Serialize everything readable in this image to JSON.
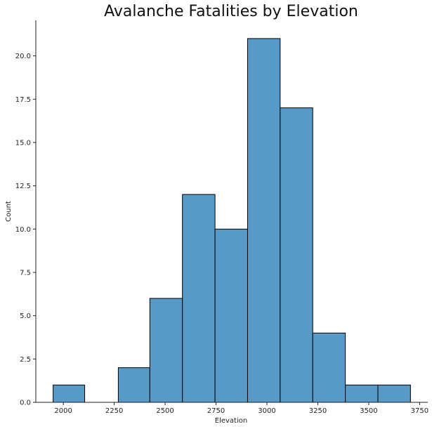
{
  "chart_data": {
    "type": "bar",
    "title": "Avalanche Fatalities by Elevation",
    "xlabel": "Elevation",
    "ylabel": "Count",
    "bins": [
      {
        "start": 1950,
        "end": 2105,
        "count": 1
      },
      {
        "start": 2105,
        "end": 2270,
        "count": 0
      },
      {
        "start": 2270,
        "end": 2425,
        "count": 2
      },
      {
        "start": 2425,
        "end": 2585,
        "count": 6
      },
      {
        "start": 2585,
        "end": 2745,
        "count": 12
      },
      {
        "start": 2745,
        "end": 2905,
        "count": 10
      },
      {
        "start": 2905,
        "end": 3065,
        "count": 21
      },
      {
        "start": 3065,
        "end": 3225,
        "count": 17
      },
      {
        "start": 3225,
        "end": 3385,
        "count": 4
      },
      {
        "start": 3385,
        "end": 3545,
        "count": 1
      },
      {
        "start": 3545,
        "end": 3705,
        "count": 1
      }
    ],
    "xlim": [
      1865,
      3790
    ],
    "ylim": [
      0,
      22.05
    ],
    "xticks": [
      "2000",
      "2250",
      "2500",
      "2750",
      "3000",
      "3250",
      "3500",
      "3750"
    ],
    "xtick_values": [
      2000,
      2250,
      2500,
      2750,
      3000,
      3250,
      3500,
      3750
    ],
    "yticks": [
      "0.0",
      "2.5",
      "5.0",
      "7.5",
      "10.0",
      "12.5",
      "15.0",
      "17.5",
      "20.0"
    ],
    "ytick_values": [
      0,
      2.5,
      5,
      7.5,
      10,
      12.5,
      15,
      17.5,
      20
    ],
    "grid": false,
    "legend": "none",
    "bar_color": "#5799c7",
    "edge_color": "#000000"
  }
}
